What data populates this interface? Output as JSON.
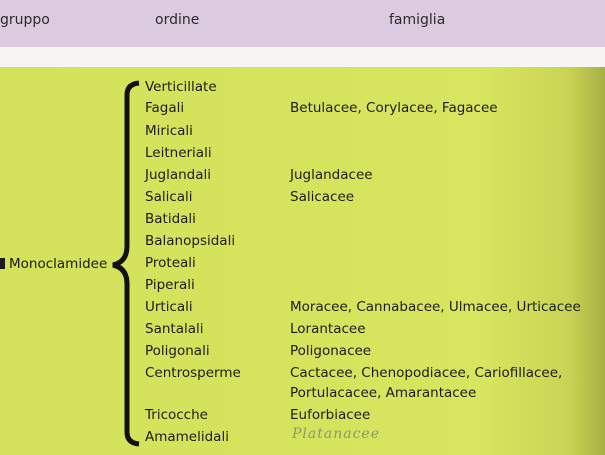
{
  "header": {
    "gruppo": "gruppo",
    "ordine": "ordine",
    "famiglia": "famiglia"
  },
  "group": "Monoclamidee",
  "rows": [
    {
      "ordine": "Verticillate",
      "famiglia": ""
    },
    {
      "ordine": "Fagali",
      "famiglia": "Betulacee, Corylacee, Fagacee"
    },
    {
      "ordine": "Miricali",
      "famiglia": ""
    },
    {
      "ordine": "Leitneriali",
      "famiglia": ""
    },
    {
      "ordine": "Juglandali",
      "famiglia": "Juglandacee"
    },
    {
      "ordine": "Salicali",
      "famiglia": "Salicacee"
    },
    {
      "ordine": "Batidali",
      "famiglia": ""
    },
    {
      "ordine": "Balanopsidali",
      "famiglia": ""
    },
    {
      "ordine": "Proteali",
      "famiglia": ""
    },
    {
      "ordine": "Piperali",
      "famiglia": ""
    },
    {
      "ordine": "Urticali",
      "famiglia": "Moracee, Cannabacee, Ulmacee, Urticacee"
    },
    {
      "ordine": "Santalali",
      "famiglia": "Lorantacee"
    },
    {
      "ordine": "Poligonali",
      "famiglia": "Poligonacee"
    },
    {
      "ordine": "Centrosperme",
      "famiglia": "Cactacee, Chenopodiacee, Cariofillacee,"
    },
    {
      "ordine": "",
      "famiglia": "Portulacacee, Amarantacee"
    },
    {
      "ordine": "Tricocche",
      "famiglia": "Euforbiacee"
    },
    {
      "ordine": "Amamelidali",
      "famiglia": ""
    }
  ],
  "handwritten_note": "Platanacee"
}
